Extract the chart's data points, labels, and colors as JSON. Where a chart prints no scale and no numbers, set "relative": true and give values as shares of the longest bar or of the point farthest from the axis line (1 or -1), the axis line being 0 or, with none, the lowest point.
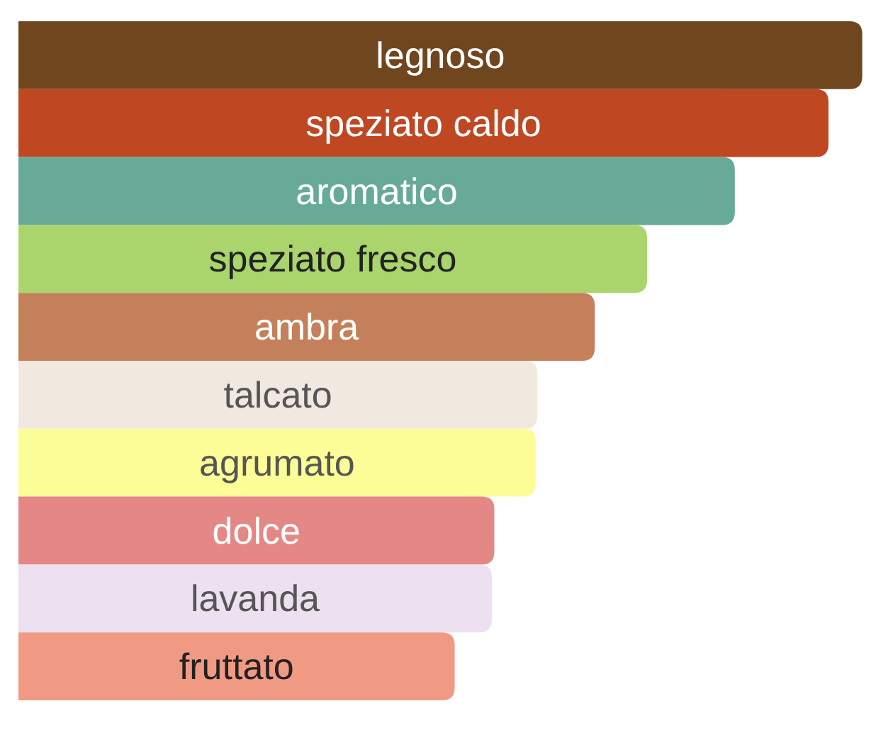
{
  "chart_data": {
    "type": "bar",
    "orientation": "horizontal",
    "relative": true,
    "categories": [
      "legnoso",
      "speziato caldo",
      "aromatico",
      "speziato fresco",
      "ambra",
      "talcato",
      "agrumato",
      "dolce",
      "lavanda",
      "fruttato"
    ],
    "values": [
      1,
      0.96,
      0.849,
      0.745,
      0.683,
      0.615,
      0.613,
      0.564,
      0.561,
      0.517
    ],
    "colors": [
      "#70461f",
      "#bf4722",
      "#68aa98",
      "#aad46c",
      "#c4805a",
      "#f1e8df",
      "#fdfd97",
      "#e48886",
      "#ede0f0",
      "#f09a84"
    ]
  }
}
